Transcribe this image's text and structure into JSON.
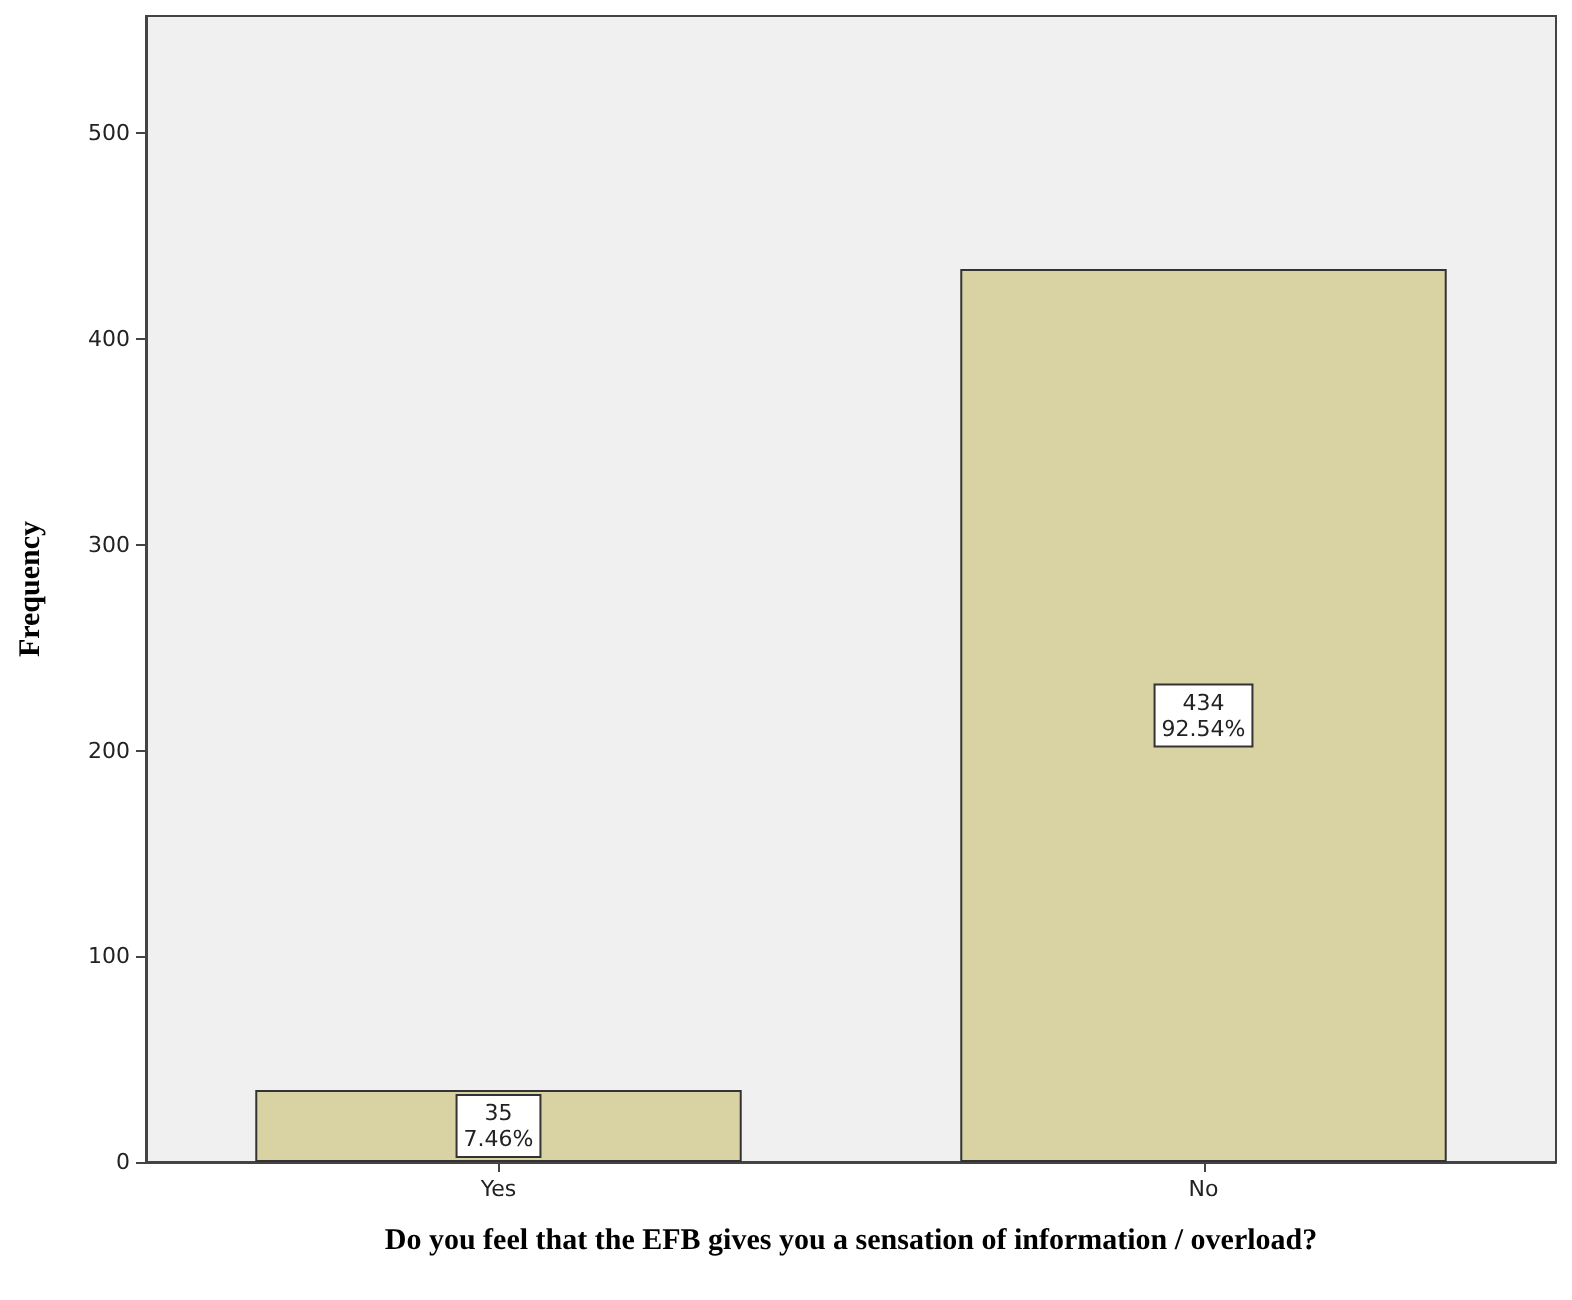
{
  "chart_data": {
    "type": "bar",
    "xlabel": "Do you feel that the EFB gives you a sensation of information / overload?",
    "ylabel": "Frequency",
    "categories": [
      "Yes",
      "No"
    ],
    "values": [
      35,
      434
    ],
    "value_labels": [
      "35\n7.46%",
      "434\n92.54%"
    ],
    "color": "#d9d3a3",
    "ylim": [
      0,
      557
    ],
    "yticks": [
      0,
      100,
      200,
      300,
      400,
      500
    ],
    "grid": false
  }
}
